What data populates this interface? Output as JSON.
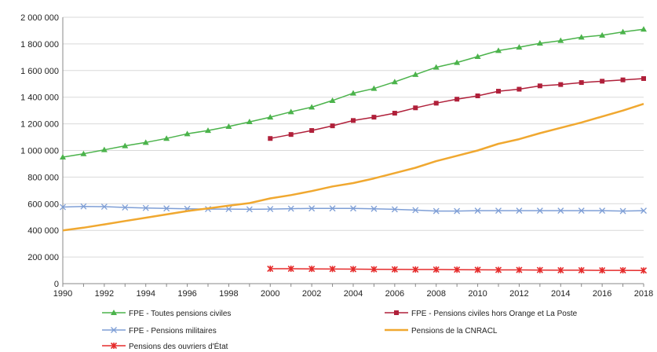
{
  "chart_data": {
    "type": "line",
    "title": "",
    "xlabel": "",
    "ylabel": "",
    "xlim": [
      1990,
      2018
    ],
    "ylim": [
      0,
      2000000
    ],
    "x_ticks": [
      "1990",
      "1992",
      "1994",
      "1996",
      "1998",
      "2000",
      "2002",
      "2004",
      "2006",
      "2008",
      "2010",
      "2012",
      "2014",
      "2016",
      "2018"
    ],
    "y_ticks": [
      "0",
      "200 000",
      "400 000",
      "600 000",
      "800 000",
      "1 000 000",
      "1 200 000",
      "1 400 000",
      "1 600 000",
      "1 800 000",
      "2 000 000"
    ],
    "grid": "horizontal",
    "legend_position": "bottom",
    "series": [
      {
        "name": "FPE - Toutes pensions civiles",
        "color": "#4bb34b",
        "marker": "triangle",
        "x": [
          1990,
          1991,
          1992,
          1993,
          1994,
          1995,
          1996,
          1997,
          1998,
          1999,
          2000,
          2001,
          2002,
          2003,
          2004,
          2005,
          2006,
          2007,
          2008,
          2009,
          2010,
          2011,
          2012,
          2013,
          2014,
          2015,
          2016,
          2017,
          2018
        ],
        "values": [
          950000,
          975000,
          1005000,
          1035000,
          1060000,
          1090000,
          1125000,
          1150000,
          1180000,
          1215000,
          1250000,
          1290000,
          1325000,
          1375000,
          1430000,
          1465000,
          1515000,
          1570000,
          1625000,
          1660000,
          1705000,
          1750000,
          1775000,
          1805000,
          1825000,
          1850000,
          1865000,
          1890000,
          1910000
        ]
      },
      {
        "name": "FPE - Pensions civiles hors Orange et La Poste",
        "color": "#b0203a",
        "marker": "square",
        "x": [
          2000,
          2001,
          2002,
          2003,
          2004,
          2005,
          2006,
          2007,
          2008,
          2009,
          2010,
          2011,
          2012,
          2013,
          2014,
          2015,
          2016,
          2017,
          2018
        ],
        "values": [
          1090000,
          1120000,
          1150000,
          1185000,
          1225000,
          1250000,
          1280000,
          1320000,
          1355000,
          1385000,
          1410000,
          1445000,
          1460000,
          1485000,
          1495000,
          1510000,
          1520000,
          1530000,
          1540000
        ]
      },
      {
        "name": "FPE - Pensions militaires",
        "color": "#7f9fd6",
        "marker": "x",
        "x": [
          1990,
          1991,
          1992,
          1993,
          1994,
          1995,
          1996,
          1997,
          1998,
          1999,
          2000,
          2001,
          2002,
          2003,
          2004,
          2005,
          2006,
          2007,
          2008,
          2009,
          2010,
          2011,
          2012,
          2013,
          2014,
          2015,
          2016,
          2017,
          2018
        ],
        "values": [
          575000,
          580000,
          578000,
          572000,
          568000,
          565000,
          562000,
          560000,
          560000,
          558000,
          560000,
          563000,
          565000,
          565000,
          565000,
          562000,
          558000,
          552000,
          545000,
          545000,
          548000,
          548000,
          548000,
          548000,
          548000,
          548000,
          548000,
          545000,
          548000
        ]
      },
      {
        "name": "Pensions de la CNRACL",
        "color": "#f0a830",
        "marker": "none",
        "x": [
          1990,
          1991,
          1992,
          1993,
          1994,
          1995,
          1996,
          1997,
          1998,
          1999,
          2000,
          2001,
          2002,
          2003,
          2004,
          2005,
          2006,
          2007,
          2008,
          2009,
          2010,
          2011,
          2012,
          2013,
          2014,
          2015,
          2016,
          2017,
          2018
        ],
        "values": [
          400000,
          420000,
          445000,
          470000,
          495000,
          520000,
          545000,
          565000,
          585000,
          605000,
          640000,
          665000,
          695000,
          730000,
          755000,
          790000,
          830000,
          870000,
          920000,
          960000,
          1000000,
          1050000,
          1085000,
          1130000,
          1170000,
          1210000,
          1255000,
          1300000,
          1350000
        ]
      },
      {
        "name": "Pensions des ouvriers d'État",
        "color": "#e52b2b",
        "marker": "star",
        "x": [
          2000,
          2001,
          2002,
          2003,
          2004,
          2005,
          2006,
          2007,
          2008,
          2009,
          2010,
          2011,
          2012,
          2013,
          2014,
          2015,
          2016,
          2017,
          2018
        ],
        "values": [
          112000,
          112000,
          111000,
          110000,
          109000,
          108000,
          107000,
          106000,
          106000,
          105000,
          104000,
          103000,
          103000,
          102000,
          101000,
          101000,
          100000,
          100000,
          99000
        ]
      }
    ]
  }
}
